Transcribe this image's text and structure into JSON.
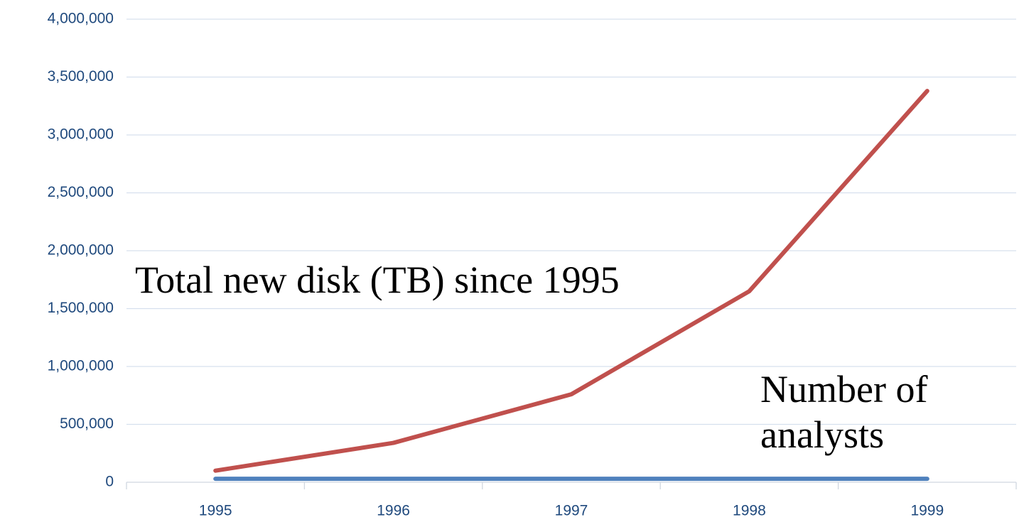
{
  "chart_data": {
    "type": "line",
    "categories": [
      "1995",
      "1996",
      "1997",
      "1998",
      "1999"
    ],
    "series": [
      {
        "name": "Total new disk (TB) since 1995",
        "color": "#c0504d",
        "values": [
          100000,
          340000,
          760000,
          1650000,
          3380000
        ]
      },
      {
        "name": "Number of analysts",
        "color": "#4f81bd",
        "values": [
          30000,
          30000,
          30000,
          30000,
          30000
        ]
      }
    ],
    "ylim": [
      0,
      4000000
    ],
    "yticks": [
      0,
      {
        "value": 500000,
        "label": "500,000"
      },
      {
        "value": 1000000,
        "label": "1,000,000"
      },
      {
        "value": 1500000,
        "label": "1,500,000"
      },
      {
        "value": 2000000,
        "label": "2,000,000"
      },
      {
        "value": 2500000,
        "label": "2,500,000"
      },
      {
        "value": 3000000,
        "label": "3,000,000"
      },
      {
        "value": 3500000,
        "label": "3,500,000"
      },
      {
        "value": 4000000,
        "label": "4,000,000"
      }
    ],
    "grid": true
  }
}
